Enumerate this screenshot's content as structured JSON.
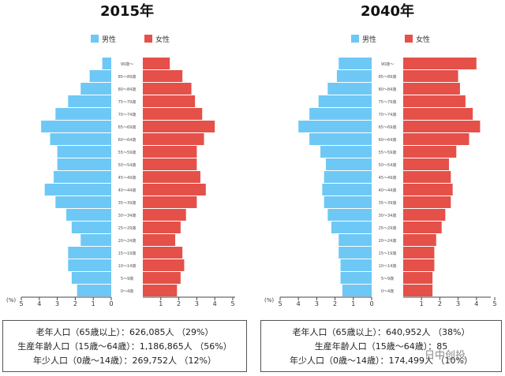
{
  "charts": [
    {
      "title": "2015年",
      "legend": {
        "male": "男性",
        "female": "女性"
      },
      "summary": [
        "老年人口（65歳以上）：626,085人 （29%）",
        "生産年齢人口（15歳～64歳）：1,186,865人 （56%）",
        "年少人口（0歳～14歳）：269,752人 （12%）"
      ]
    },
    {
      "title": "2040年",
      "legend": {
        "male": "男性",
        "female": "女性"
      },
      "summary": [
        "老年人口（65歳以上）：640,952人 （38%）",
        "生産年齢人口（15歳～64歳）：85",
        "年少人口（0歳～14歳）：174,499人 （10%）"
      ]
    }
  ],
  "watermark": "日中创投",
  "chart_data": [
    {
      "type": "bar",
      "orientation": "horizontal",
      "title": "2015年",
      "xlabel": "(%)",
      "xlim": [
        0,
        5
      ],
      "xticks": [
        "5",
        "4",
        "3",
        "2",
        "1",
        "0",
        "1",
        "2",
        "3",
        "4",
        "5"
      ],
      "categories": [
        "90歳～",
        "85～89歳",
        "80～84歳",
        "75～79歳",
        "70～74歳",
        "65～69歳",
        "60～64歳",
        "55～59歳",
        "50～54歳",
        "45～49歳",
        "40～44歳",
        "35～39歳",
        "30～34歳",
        "25～29歳",
        "20～24歳",
        "15～19歳",
        "10～14歳",
        "5～9歳",
        "0～4歳"
      ],
      "series": [
        {
          "name": "男性",
          "color": "#6ec8f5",
          "values": [
            0.5,
            1.2,
            1.7,
            2.4,
            3.1,
            3.9,
            3.4,
            3.0,
            3.0,
            3.2,
            3.7,
            3.1,
            2.5,
            2.2,
            1.7,
            2.4,
            2.4,
            2.2,
            1.9
          ]
        },
        {
          "name": "女性",
          "color": "#e55049",
          "values": [
            1.5,
            2.2,
            2.7,
            2.9,
            3.3,
            4.0,
            3.4,
            3.0,
            3.0,
            3.2,
            3.5,
            3.0,
            2.4,
            2.1,
            1.8,
            2.2,
            2.3,
            2.1,
            1.9
          ]
        }
      ]
    },
    {
      "type": "bar",
      "orientation": "horizontal",
      "title": "2040年",
      "xlabel": "(%)",
      "xlim": [
        0,
        5
      ],
      "xticks": [
        "5",
        "4",
        "3",
        "2",
        "1",
        "0",
        "1",
        "2",
        "3",
        "4",
        "5"
      ],
      "categories": [
        "90歳～",
        "85～89歳",
        "80～84歳",
        "75～79歳",
        "70～74歳",
        "65～69歳",
        "60～64歳",
        "55～59歳",
        "50～54歳",
        "45～49歳",
        "40～44歳",
        "35～39歳",
        "30～34歳",
        "25～29歳",
        "20～24歳",
        "15～19歳",
        "10～14歳",
        "5～9歳",
        "0～4歳"
      ],
      "series": [
        {
          "name": "男性",
          "color": "#6ec8f5",
          "values": [
            1.8,
            1.9,
            2.4,
            2.9,
            3.4,
            4.0,
            3.4,
            2.8,
            2.5,
            2.6,
            2.7,
            2.6,
            2.4,
            2.2,
            1.8,
            1.8,
            1.7,
            1.7,
            1.6
          ]
        },
        {
          "name": "女性",
          "color": "#e55049",
          "values": [
            4.0,
            3.0,
            3.1,
            3.4,
            3.8,
            4.2,
            3.6,
            2.9,
            2.5,
            2.6,
            2.7,
            2.6,
            2.3,
            2.1,
            1.8,
            1.7,
            1.7,
            1.6,
            1.6
          ]
        }
      ]
    }
  ]
}
